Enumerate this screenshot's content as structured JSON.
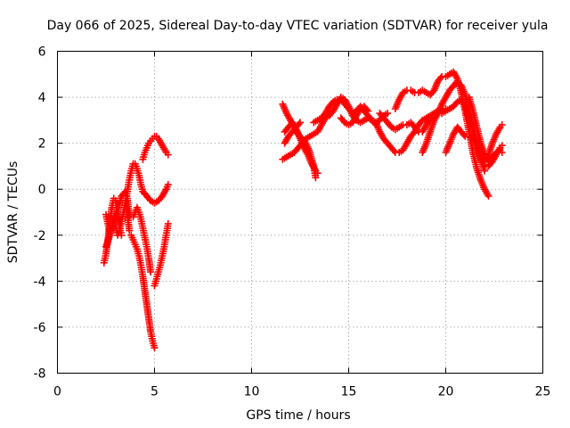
{
  "chart_data": {
    "type": "scatter",
    "title": "Day 066 of 2025, Sidereal Day-to-day VTEC variation (SDTVAR) for receiver yula",
    "xlabel": "GPS time / hours",
    "ylabel": "SDTVAR / TECUs",
    "xlim": [
      0,
      25
    ],
    "ylim": [
      -8,
      6
    ],
    "xticks": [
      0,
      5,
      10,
      15,
      20,
      25
    ],
    "yticks": [
      -8,
      -6,
      -4,
      -2,
      0,
      2,
      4,
      6
    ],
    "grid": true,
    "legend": "none",
    "marker": "+",
    "color": "#ff0000",
    "series": [
      {
        "x": [
          2.4,
          2.5,
          2.6,
          2.7,
          2.8,
          2.9,
          3.0,
          3.1,
          3.2,
          3.3
        ],
        "y": [
          -3.2,
          -2.8,
          -2.2,
          -1.5,
          -0.8,
          -0.4,
          -0.5,
          -1.0,
          -1.6,
          -2.0
        ]
      },
      {
        "x": [
          2.5,
          2.6,
          2.7,
          2.8,
          2.9,
          3.0,
          3.1,
          3.2,
          3.3,
          3.4,
          3.5,
          3.6,
          3.7
        ],
        "y": [
          -1.1,
          -1.5,
          -1.9,
          -1.6,
          -1.2,
          -1.6,
          -2.0,
          -1.8,
          -1.4,
          -1.0,
          -0.6,
          -1.0,
          -1.8
        ]
      },
      {
        "x": [
          2.5,
          2.7,
          2.9,
          3.1,
          3.3,
          3.5,
          3.6,
          3.7
        ],
        "y": [
          -2.5,
          -2.0,
          -1.4,
          -0.9,
          -0.3,
          -0.1,
          -0.4,
          -1.2
        ]
      },
      {
        "x": [
          3.8,
          3.9,
          4.0,
          4.1,
          4.2,
          4.3,
          4.4,
          4.5,
          4.6,
          4.7,
          4.8,
          4.9,
          5.0
        ],
        "y": [
          -2.0,
          -2.2,
          -2.4,
          -2.6,
          -2.9,
          -3.3,
          -3.8,
          -4.4,
          -5.0,
          -5.6,
          -6.2,
          -6.6,
          -6.9
        ]
      },
      {
        "x": [
          3.9,
          4.0,
          4.1,
          4.2,
          4.3,
          4.4,
          4.5,
          4.6,
          4.7,
          4.8
        ],
        "y": [
          -1.2,
          -1.0,
          -0.8,
          -1.0,
          -1.3,
          -1.7,
          -2.1,
          -2.5,
          -3.0,
          -3.6
        ]
      },
      {
        "x": [
          3.5,
          3.6,
          3.7,
          3.8,
          3.9,
          4.0,
          4.1,
          4.2,
          4.3,
          4.4,
          4.5
        ],
        "y": [
          -0.6,
          -0.1,
          0.4,
          0.8,
          1.1,
          1.1,
          0.9,
          0.6,
          0.2,
          -0.1,
          -0.2
        ]
      },
      {
        "x": [
          4.4,
          4.6,
          4.8,
          5.0,
          5.2,
          5.4,
          5.6,
          5.7
        ],
        "y": [
          -0.1,
          -0.3,
          -0.5,
          -0.6,
          -0.5,
          -0.3,
          0.0,
          0.2
        ]
      },
      {
        "x": [
          4.4,
          4.5,
          4.6,
          4.7,
          4.8,
          4.9,
          5.0,
          5.1,
          5.2,
          5.4,
          5.6,
          5.7
        ],
        "y": [
          1.3,
          1.6,
          1.8,
          2.0,
          2.1,
          2.2,
          2.3,
          2.3,
          2.2,
          1.9,
          1.6,
          1.5
        ]
      },
      {
        "x": [
          5.0,
          5.1,
          5.2,
          5.3,
          5.4,
          5.5,
          5.6,
          5.7
        ],
        "y": [
          -4.2,
          -3.9,
          -3.6,
          -3.3,
          -2.9,
          -2.5,
          -2.0,
          -1.5
        ]
      },
      {
        "x": [
          11.6,
          11.8,
          12.0,
          12.2,
          12.4,
          12.6,
          12.8,
          13.0,
          13.2,
          13.3
        ],
        "y": [
          3.7,
          3.3,
          3.0,
          2.7,
          2.4,
          2.2,
          2.0,
          1.6,
          1.0,
          0.5
        ]
      },
      {
        "x": [
          11.7,
          11.9,
          12.1,
          12.3,
          12.5,
          12.7,
          12.9,
          13.1,
          13.3,
          13.4
        ],
        "y": [
          2.5,
          2.7,
          2.9,
          2.6,
          2.2,
          1.8,
          1.5,
          1.1,
          0.8,
          0.7
        ]
      },
      {
        "x": [
          11.6,
          11.8,
          12.0,
          12.2,
          12.4,
          12.6,
          12.8,
          13.0,
          13.2,
          13.4,
          13.6,
          13.8,
          14.0
        ],
        "y": [
          1.3,
          1.4,
          1.5,
          1.6,
          1.8,
          2.0,
          2.2,
          2.3,
          2.4,
          2.5,
          2.8,
          3.1,
          3.3
        ]
      },
      {
        "x": [
          11.7,
          11.9,
          12.1,
          12.3,
          12.5
        ],
        "y": [
          2.0,
          2.3,
          2.5,
          2.7,
          2.9
        ]
      },
      {
        "x": [
          13.2,
          13.4,
          13.6,
          13.8,
          14.0,
          14.2,
          14.4,
          14.6,
          14.8,
          15.0,
          15.2,
          15.4,
          15.6,
          15.8,
          16.0,
          16.2,
          16.4,
          16.6,
          16.8,
          17.0
        ],
        "y": [
          2.9,
          3.0,
          3.1,
          3.3,
          3.6,
          3.8,
          3.9,
          3.9,
          3.7,
          3.5,
          3.3,
          3.4,
          3.6,
          3.4,
          3.2,
          3.0,
          2.9,
          3.0,
          3.2,
          3.3
        ]
      },
      {
        "x": [
          14.0,
          14.2,
          14.4,
          14.6,
          14.8,
          15.0,
          15.2,
          15.4,
          15.6,
          15.8,
          16.0,
          16.2,
          16.4
        ],
        "y": [
          3.2,
          3.4,
          3.7,
          4.0,
          3.9,
          3.6,
          3.2,
          3.0,
          2.9,
          3.0,
          3.1,
          3.0,
          2.8
        ]
      },
      {
        "x": [
          14.6,
          14.8,
          15.0,
          15.2,
          15.4,
          15.6,
          15.8,
          16.0
        ],
        "y": [
          3.1,
          2.9,
          2.8,
          2.9,
          3.2,
          3.5,
          3.6,
          3.4
        ]
      },
      {
        "x": [
          16.4,
          16.6,
          16.8,
          17.0,
          17.2,
          17.4,
          17.6,
          17.8,
          18.0,
          18.2,
          18.4,
          18.6,
          18.8,
          19.0,
          19.2,
          19.4,
          19.6
        ],
        "y": [
          2.9,
          2.5,
          2.2,
          2.0,
          1.8,
          1.6,
          1.6,
          1.7,
          2.0,
          2.3,
          2.5,
          2.8,
          3.0,
          3.1,
          3.2,
          3.3,
          3.4
        ]
      },
      {
        "x": [
          16.6,
          16.8,
          17.0,
          17.2,
          17.4,
          17.6,
          17.8,
          18.0,
          18.2,
          18.4,
          18.6,
          18.8,
          19.0,
          19.2,
          19.4,
          19.6,
          19.8,
          20.0
        ],
        "y": [
          3.3,
          3.1,
          2.9,
          2.7,
          2.6,
          2.7,
          2.8,
          2.8,
          2.9,
          2.7,
          2.5,
          2.5,
          2.8,
          3.1,
          3.3,
          3.4,
          3.5,
          3.5
        ]
      },
      {
        "x": [
          17.4,
          17.6,
          17.8,
          18.0,
          18.2,
          18.4,
          18.6,
          18.8,
          19.0,
          19.2,
          19.4
        ],
        "y": [
          3.5,
          3.9,
          4.2,
          4.3,
          4.3,
          4.2,
          4.2,
          4.3,
          4.2,
          4.1,
          4.3
        ]
      },
      {
        "x": [
          19.4,
          19.6,
          19.8,
          20.0,
          20.2,
          20.4,
          20.6,
          20.8,
          21.0,
          21.2,
          21.4,
          21.6,
          21.8,
          22.0,
          22.2
        ],
        "y": [
          4.3,
          4.7,
          4.9,
          4.9,
          5.0,
          5.1,
          4.8,
          4.2,
          3.4,
          2.5,
          1.6,
          0.9,
          0.4,
          0.0,
          -0.3
        ]
      },
      {
        "x": [
          18.8,
          19.0,
          19.2,
          19.4,
          19.6,
          19.8,
          20.0,
          20.2,
          20.4,
          20.6,
          20.8,
          21.0,
          21.2,
          21.4,
          21.6,
          21.8,
          22.0
        ],
        "y": [
          1.6,
          2.0,
          2.5,
          3.0,
          3.3,
          3.7,
          4.0,
          4.3,
          4.5,
          4.7,
          4.5,
          4.1,
          3.5,
          2.8,
          2.1,
          1.4,
          0.8
        ]
      },
      {
        "x": [
          19.6,
          19.8,
          20.0,
          20.2,
          20.4,
          20.6,
          20.8,
          21.0,
          21.2,
          21.4,
          21.6,
          21.8,
          22.0,
          22.2,
          22.4,
          22.6,
          22.8,
          22.9
        ],
        "y": [
          3.3,
          3.3,
          3.4,
          3.5,
          3.6,
          3.8,
          3.9,
          3.6,
          3.0,
          2.4,
          1.8,
          1.3,
          1.0,
          1.0,
          1.2,
          1.5,
          1.8,
          1.9
        ]
      },
      {
        "x": [
          20.0,
          20.2,
          20.4,
          20.6,
          20.8,
          21.0,
          21.2,
          21.4,
          21.6,
          21.8,
          22.0,
          22.2,
          22.4,
          22.6,
          22.8,
          22.9
        ],
        "y": [
          1.6,
          2.0,
          2.4,
          2.7,
          2.5,
          2.3,
          2.3,
          2.2,
          2.0,
          1.6,
          1.3,
          1.5,
          2.0,
          2.4,
          2.7,
          2.8
        ]
      },
      {
        "x": [
          21.2,
          21.4,
          21.6,
          21.8,
          22.0,
          22.2,
          22.4,
          22.6,
          22.8,
          22.9
        ],
        "y": [
          4.0,
          3.4,
          2.7,
          2.0,
          1.5,
          1.2,
          1.4,
          1.6,
          1.7,
          1.6
        ]
      }
    ]
  }
}
